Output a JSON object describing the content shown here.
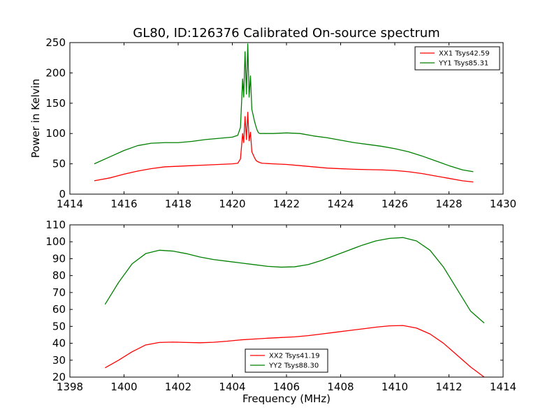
{
  "figure": {
    "title": "GL80, ID:126376 Calibrated On-source spectrum"
  },
  "chart_data": [
    {
      "type": "line",
      "title": "GL80, ID:126376 Calibrated On-source spectrum",
      "xlabel": "",
      "ylabel": "Power in Kelvin",
      "xlim": [
        1414,
        1430
      ],
      "ylim": [
        0,
        250
      ],
      "xticks": [
        1414,
        1416,
        1418,
        1420,
        1422,
        1424,
        1426,
        1428,
        1430
      ],
      "yticks": [
        0,
        50,
        100,
        150,
        200,
        250
      ],
      "legend_position": "top-right",
      "grid": false,
      "series": [
        {
          "name": "XX1 Tsys42.59",
          "color": "#ff0000",
          "x": [
            1414.9,
            1415.5,
            1416,
            1416.5,
            1417,
            1417.5,
            1418,
            1418.5,
            1419,
            1419.5,
            1420,
            1420.2,
            1420.3,
            1420.38,
            1420.42,
            1420.47,
            1420.52,
            1420.57,
            1420.62,
            1420.67,
            1420.72,
            1420.77,
            1420.82,
            1420.87,
            1420.92,
            1420.97,
            1421.02,
            1421.1,
            1421.5,
            1422,
            1422.5,
            1423,
            1423.5,
            1424,
            1424.5,
            1425,
            1425.5,
            1426,
            1426.5,
            1427,
            1427.5,
            1428,
            1428.5,
            1428.9
          ],
          "y": [
            22,
            27,
            33,
            38,
            42,
            45,
            46,
            47,
            48,
            49,
            50,
            51,
            58,
            100,
            85,
            128,
            90,
            135,
            88,
            102,
            70,
            65,
            60,
            56,
            54,
            53,
            52,
            51,
            50,
            49,
            47,
            45,
            43,
            42,
            41,
            40.5,
            40,
            39,
            37,
            34,
            30,
            26,
            22,
            20
          ]
        },
        {
          "name": "YY1 Tsys85.31",
          "color": "#008000",
          "x": [
            1414.9,
            1415.5,
            1416,
            1416.5,
            1417,
            1417.5,
            1418,
            1418.5,
            1419,
            1419.5,
            1420,
            1420.2,
            1420.3,
            1420.38,
            1420.42,
            1420.47,
            1420.52,
            1420.57,
            1420.62,
            1420.67,
            1420.72,
            1420.77,
            1420.82,
            1420.87,
            1420.92,
            1420.97,
            1421.02,
            1421.1,
            1421.5,
            1422,
            1422.5,
            1423,
            1423.5,
            1424,
            1424.5,
            1425,
            1425.5,
            1426,
            1426.5,
            1427,
            1427.5,
            1428,
            1428.5,
            1428.9
          ],
          "y": [
            50,
            62,
            72,
            80,
            84,
            85,
            85,
            87,
            90,
            92,
            94,
            97,
            110,
            190,
            160,
            235,
            165,
            248,
            160,
            195,
            140,
            130,
            120,
            112,
            105,
            101,
            100,
            100,
            100,
            101,
            100,
            96,
            93,
            89,
            85,
            82,
            79,
            75,
            70,
            63,
            55,
            47,
            40,
            37
          ]
        }
      ]
    },
    {
      "type": "line",
      "title": "",
      "xlabel": "Frequency (MHz)",
      "ylabel": "",
      "xlim": [
        1398,
        1414
      ],
      "ylim": [
        20,
        110
      ],
      "xticks": [
        1398,
        1400,
        1402,
        1404,
        1406,
        1408,
        1410,
        1412,
        1414
      ],
      "yticks": [
        20,
        30,
        40,
        50,
        60,
        70,
        80,
        90,
        100,
        110
      ],
      "legend_position": "bottom-center",
      "grid": false,
      "series": [
        {
          "name": "XX2 Tsys41.19",
          "color": "#ff0000",
          "x": [
            1399.3,
            1399.8,
            1400.3,
            1400.8,
            1401.3,
            1401.8,
            1402.3,
            1402.8,
            1403.3,
            1403.8,
            1404.3,
            1404.8,
            1405.3,
            1405.8,
            1406.3,
            1406.8,
            1407.3,
            1407.8,
            1408.3,
            1408.8,
            1409.3,
            1409.8,
            1410.3,
            1410.8,
            1411.3,
            1411.8,
            1412.3,
            1412.8,
            1413.3
          ],
          "y": [
            25.5,
            30,
            35,
            39,
            40.5,
            40.7,
            40.5,
            40.3,
            40.6,
            41.2,
            42,
            42.5,
            43,
            43.4,
            43.8,
            44.5,
            45.5,
            46.5,
            47.5,
            48.5,
            49.5,
            50.3,
            50.5,
            49,
            45.5,
            40,
            33,
            26,
            20
          ]
        },
        {
          "name": "YY2 Tsys88.30",
          "color": "#008000",
          "x": [
            1399.3,
            1399.8,
            1400.3,
            1400.8,
            1401.3,
            1401.8,
            1402.3,
            1402.8,
            1403.3,
            1403.8,
            1404.3,
            1404.8,
            1405.3,
            1405.8,
            1406.3,
            1406.8,
            1407.3,
            1407.8,
            1408.3,
            1408.8,
            1409.3,
            1409.8,
            1410.3,
            1410.8,
            1411.3,
            1411.8,
            1412.3,
            1412.8,
            1413.3
          ],
          "y": [
            63,
            76,
            87,
            93,
            95,
            94.5,
            93,
            91,
            89.5,
            88.5,
            87.5,
            86.5,
            85.5,
            85,
            85.2,
            86.5,
            89,
            92,
            95,
            98,
            100.5,
            102,
            102.5,
            100.5,
            95,
            85,
            72,
            59,
            52
          ]
        }
      ]
    }
  ]
}
